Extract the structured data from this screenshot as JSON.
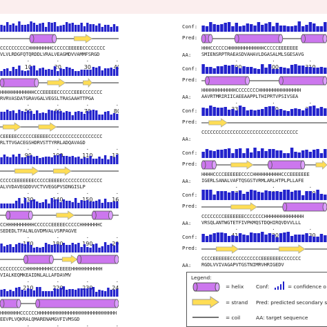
{
  "row_labels": {
    "conf": "Conf:",
    "pred": "Pred:",
    "aa": "AA:"
  },
  "left_blocks": [
    {
      "ss": "CCCCCCCCCCHHHHHHHHCCCCCCEEEEECCCCCCCC",
      "aa": "VLVLRDGFQTQRDDLVRALVEAGMDVVAMMFSRGD",
      "ticks": [
        "10",
        "20",
        "30",
        "40"
      ],
      "pred": [
        [
          "c",
          0,
          10
        ],
        [
          "h",
          10,
          19
        ],
        [
          "c",
          19,
          25
        ],
        [
          "e",
          25,
          31
        ],
        [
          "c",
          31,
          40
        ]
      ]
    },
    {
      "ss": "HHHHHHHHHHHHCCCEEEEECCCCCCEEECCCCCCC",
      "aa": "RVRVASDATGRAVGALVEGSLTRASAAHTTPGA",
      "ticks": [
        "50",
        "60",
        "70",
        "80"
      ],
      "pred": [
        [
          "h",
          0,
          13
        ],
        [
          "c",
          13,
          16
        ],
        [
          "e",
          16,
          22
        ],
        [
          "c",
          22,
          28
        ],
        [
          "e",
          28,
          31
        ],
        [
          "c",
          31,
          40
        ]
      ]
    },
    {
      "ss": "CEEEEECCCCCCEEEEECCCCCCCCCCCCCCCCCCC",
      "aa": "RLTTVGACEGSHDRVSTTYRRLADQAVAGD",
      "ticks": [
        "90",
        "100",
        "110",
        "120"
      ],
      "pred": [
        [
          "c",
          0,
          1
        ],
        [
          "e",
          1,
          7
        ],
        [
          "c",
          7,
          13
        ],
        [
          "e",
          13,
          19
        ],
        [
          "c",
          19,
          40
        ]
      ]
    },
    {
      "ss": "CCCCCEEEEEEECCCCCEEEEECCCCCCCCCCCCCC",
      "aa": "ALVVDAVEGDDVVCTVVEGGPVSDNGISLP",
      "ticks": [
        "130",
        "140",
        "150",
        "160"
      ],
      "pred": [
        [
          "c",
          0,
          5
        ],
        [
          "e",
          5,
          13
        ],
        [
          "c",
          13,
          18
        ],
        [
          "e",
          18,
          24
        ],
        [
          "c",
          24,
          40
        ]
      ]
    },
    {
      "ss": "CCHHHHHHHHHHCCCCCCEEEEECCCCCHHHHHHHC",
      "aa": "SEDEDLTFALNLGVDMVALVSRPAGVE",
      "ticks": [
        "170",
        "180",
        "190",
        "200"
      ],
      "pred": [
        [
          "c",
          0,
          2
        ],
        [
          "h",
          2,
          11
        ],
        [
          "c",
          11,
          19
        ],
        [
          "e",
          19,
          25
        ],
        [
          "c",
          25,
          31
        ],
        [
          "h",
          31,
          38
        ],
        [
          "c",
          38,
          40
        ]
      ]
    },
    {
      "ss": "CCCCCCCCCHHHHHHHHHCCCEEEEHHHHHHHHHHH",
      "aa": "VIALKEQMKEAIDNLALLAFDAVMV",
      "ticks": [
        "210",
        "220",
        "230",
        "240"
      ],
      "pred": [
        [
          "c",
          0,
          8
        ],
        [
          "h",
          8,
          18
        ],
        [
          "c",
          18,
          21
        ],
        [
          "e",
          21,
          26
        ],
        [
          "h",
          26,
          40
        ]
      ]
    },
    {
      "ss": "HHHHHHHCCCCCCHHHHHHHHHHHHHHHHHHHHHHHHHHHH",
      "aa": "EEVPLVQKRALQMARENAMGVFIVMSGD",
      "ticks": [
        "250",
        "260",
        "270",
        "280"
      ],
      "pred": [
        [
          "h",
          0,
          7
        ],
        [
          "c",
          7,
          12
        ],
        [
          "h",
          12,
          40
        ]
      ]
    }
  ],
  "right_blocks": [
    {
      "ss": "HHHCCCCCCHHHHHHHHHHHHHCCCCCEEEEEEE",
      "aa": "SMIENSRPTRAEASDVAHAVLDGASALMLSGESAVG",
      "ticks": [
        "290",
        "300",
        "310"
      ],
      "pred": [
        [
          "h",
          0,
          3
        ],
        [
          "c",
          3,
          9
        ],
        [
          "h",
          9,
          22
        ],
        [
          "c",
          22,
          27
        ],
        [
          "h",
          27,
          34
        ]
      ]
    },
    {
      "ss": "HHHHHHHHHHHHCCCCCCCCHHHHHHHHHHHHHHH",
      "aa": "AAVRTMRIRIICAEEAAPPLTHIPRTVPSIVSEA",
      "ticks": [
        "330",
        "340",
        "350"
      ],
      "pred": [
        [
          "c",
          0,
          1
        ],
        [
          "h",
          1,
          13
        ],
        [
          "c",
          13,
          21
        ],
        [
          "h",
          21,
          34
        ]
      ]
    },
    {
      "ss": "CCCCCCCCCCCCCCCCCCCCCCCCCCCCCCCCCC",
      "aa": "",
      "ticks": [],
      "pred": [
        [
          "c",
          0,
          2
        ],
        [
          "e",
          2,
          7
        ],
        [
          "c",
          7,
          34
        ]
      ]
    },
    {
      "ss": "HHHHCCCCEEEEEECCCCHHHHHHHHHHCCCEEEEEEE",
      "aa": "IGERLSANALVAFTQSGSTVRMLARLHTPLPLLAFE",
      "ticks": [
        "370",
        "380",
        "390"
      ],
      "pred": [
        [
          "h",
          0,
          4
        ],
        [
          "c",
          4,
          8
        ],
        [
          "e",
          8,
          14
        ],
        [
          "c",
          14,
          18
        ],
        [
          "h",
          18,
          28
        ],
        [
          "c",
          28,
          31
        ],
        [
          "e",
          31,
          34
        ]
      ]
    },
    {
      "ss": "CCCCCCCCEEEEEEECCCCCCCHHHHHHHHHHHHHH",
      "aa": "VRSQLANTWGTETFIVPKMQSTDQHIRQVDVVLLL",
      "ticks": [
        "410",
        "420",
        "430"
      ],
      "pred": [
        [
          "c",
          0,
          8
        ],
        [
          "e",
          8,
          15
        ],
        [
          "c",
          15,
          22
        ],
        [
          "h",
          22,
          34
        ]
      ]
    },
    {
      "ss": "CCCCEEEEEECCCCCCCCCCCEEEEEEECCCCCCC",
      "aa": "RGDLVVIVAGAPVTGSTNIMRVHRIGEDV",
      "ticks": [
        "450",
        "460",
        "470"
      ],
      "pred": [
        [
          "c",
          0,
          4
        ],
        [
          "e",
          4,
          10
        ],
        [
          "c",
          10,
          21
        ],
        [
          "e",
          21,
          28
        ],
        [
          "c",
          28,
          34
        ]
      ]
    }
  ],
  "legend": {
    "title": "Legend:",
    "helix": "= helix",
    "strand": "= strand",
    "coil": "= coil",
    "conf": "Conf:",
    "conf_desc": "= confidence o",
    "pred": "Pred: predicted secondary stru",
    "aa": "AA: target sequence"
  },
  "colors": {
    "helix": "#cc77ee",
    "strand": "#ffdd55",
    "conf": "#2222cc",
    "background_band": "#fbeeee"
  }
}
